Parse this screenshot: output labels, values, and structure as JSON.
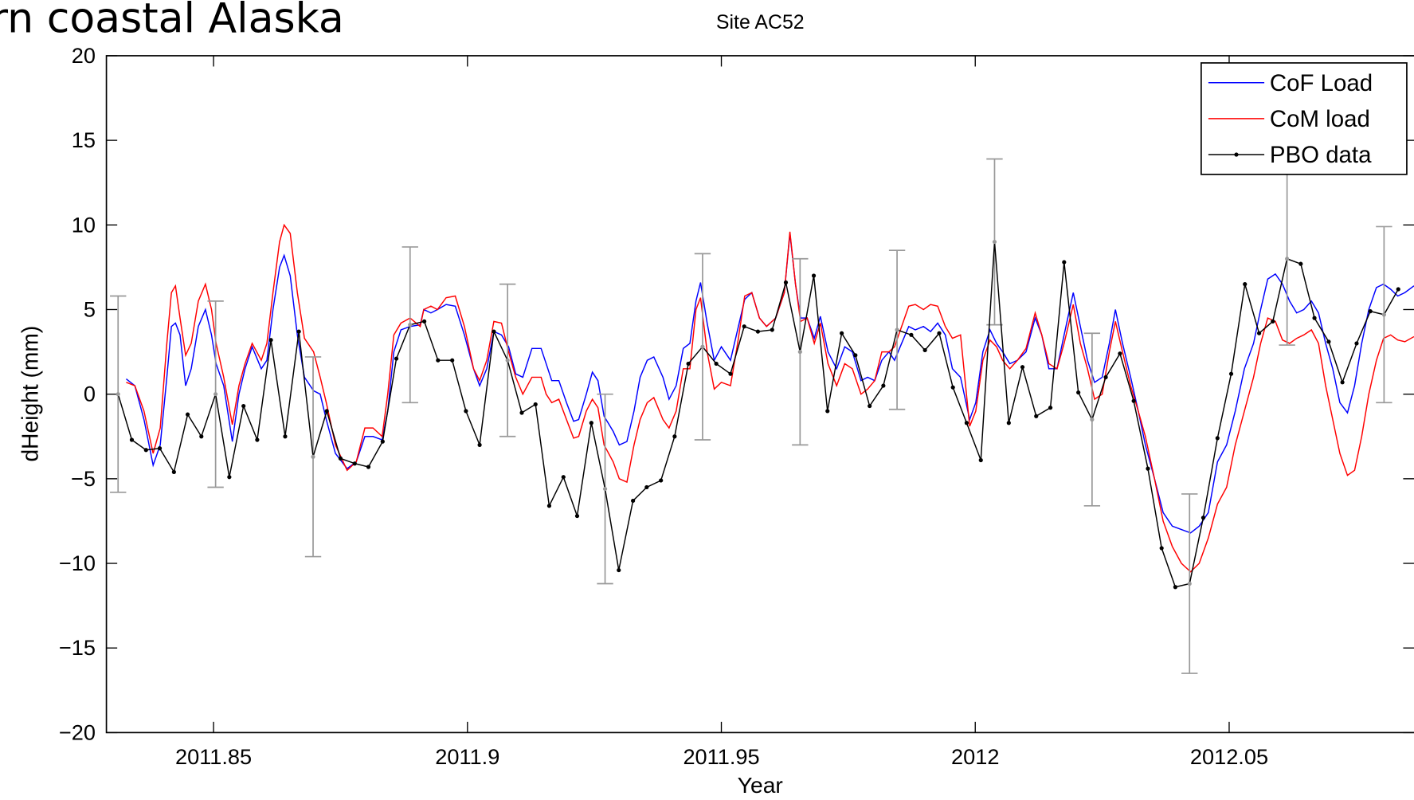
{
  "slide_title": "rn coastal Alaska",
  "chart_data": {
    "type": "line",
    "title": "Site AC52",
    "xlabel": "Year",
    "ylabel": "dHeight (mm)",
    "xlim": [
      2011.8289,
      2012.0864
    ],
    "xticks": [
      2011.85,
      2011.9,
      2011.95,
      2012,
      2012.05
    ],
    "ylim": [
      -20,
      20
    ],
    "yticks": [
      {
        "value": -20,
        "label": "−20"
      },
      {
        "value": -15,
        "label": "−15"
      },
      {
        "value": -10,
        "label": "−10"
      },
      {
        "value": -5,
        "label": "−5"
      },
      0,
      5,
      10,
      15,
      20
    ],
    "legend": "upper right",
    "errorbar_color": "#999999",
    "x": [
      2011.8328,
      2011.8345,
      2011.8363,
      2011.8381,
      2011.8395,
      2011.8408,
      2011.8417,
      2011.8425,
      2011.8434,
      2011.8445,
      2011.8456,
      2011.847,
      2011.8484,
      2011.8496,
      2011.8505,
      2011.852,
      2011.8537,
      2011.855,
      2011.8562,
      2011.8576,
      2011.8594,
      2011.8605,
      2011.8617,
      2011.863,
      2011.8639,
      2011.8651,
      2011.8665,
      2011.8679,
      2011.8697,
      2011.871,
      2011.8722,
      2011.874,
      2011.8763,
      2011.8781,
      2011.8798,
      2011.8814,
      2011.8832,
      2011.8843,
      2011.8855,
      2011.8869,
      2011.8887,
      2011.8907,
      2011.8914,
      2011.8928,
      2011.8941,
      2011.8958,
      2011.8976,
      2011.8994,
      2011.9012,
      2011.9024,
      2011.9038,
      2011.9052,
      2011.9067,
      2011.9081,
      2011.9095,
      2011.9109,
      2011.9127,
      2011.9145,
      2011.9155,
      2011.9166,
      2011.918,
      2011.9195,
      2011.9209,
      2011.9219,
      2011.9234,
      2011.9246,
      2011.9257,
      2011.9269,
      2011.9287,
      2011.9299,
      2011.9314,
      2011.9328,
      2011.934,
      2011.9354,
      2011.9367,
      2011.9385,
      2011.9397,
      2011.9411,
      2011.9425,
      2011.9438,
      2011.945,
      2011.9459,
      2011.9472,
      2011.9486,
      2011.95,
      2011.9518,
      2011.9532,
      2011.9546,
      2011.956,
      2011.9575,
      2011.9589,
      2011.9607,
      2011.9624,
      2011.9635,
      2011.9646,
      2011.9656,
      2011.9669,
      2011.9683,
      2011.9695,
      2011.971,
      2011.9727,
      2011.9743,
      2011.9758,
      2011.9775,
      2011.9788,
      2011.9802,
      2011.9816,
      2011.983,
      2011.9841,
      2011.9855,
      2011.9869,
      2011.9882,
      2011.9898,
      2011.9912,
      2011.9926,
      2011.9941,
      2011.9955,
      2011.9971,
      2011.9989,
      2012.0001,
      2012.0015,
      2012.0029,
      2012.0042,
      2012.0054,
      2012.0068,
      2012.0083,
      2012.01,
      2012.0118,
      2012.0131,
      2012.0145,
      2012.0161,
      2012.0175,
      2012.0193,
      2012.0207,
      2012.0221,
      2012.0235,
      2012.025,
      2012.0264,
      2012.0276,
      2012.029,
      2012.0306,
      2012.0321,
      2012.0335,
      2012.0353,
      2012.037,
      2012.0388,
      2012.0406,
      2012.0424,
      2012.0441,
      2012.0459,
      2012.0477,
      2012.0495,
      2012.0512,
      2012.053,
      2012.0548,
      2012.0562,
      2012.0576,
      2012.0591,
      2012.0605,
      2012.0619,
      2012.0633,
      2012.0647,
      2012.0662,
      2012.0676,
      2012.069,
      2012.0704,
      2012.0718,
      2012.0733,
      2012.0747,
      2012.0761,
      2012.0775,
      2012.079,
      2012.0804,
      2012.0818,
      2012.0832,
      2012.0846,
      2012.0864
    ],
    "series": [
      {
        "name": "CoF Load",
        "color": "#0000ff",
        "values": [
          0.9,
          0.5,
          -1.5,
          -4.2,
          -3.0,
          1.0,
          4.0,
          4.2,
          3.5,
          0.5,
          1.5,
          4.0,
          5.0,
          3.5,
          1.8,
          0.5,
          -2.8,
          0,
          1.5,
          2.8,
          1.5,
          2.0,
          5.0,
          7.5,
          8.2,
          7.0,
          3.5,
          1.0,
          0.2,
          0,
          -1.5,
          -3.5,
          -4.4,
          -4.0,
          -2.5,
          -2.5,
          -2.7,
          -1.0,
          2.5,
          3.8,
          4.0,
          4.1,
          5.0,
          4.8,
          5.0,
          5.3,
          5.2,
          3.5,
          1.5,
          0.5,
          1.5,
          3.7,
          3.5,
          2.8,
          1.2,
          1.0,
          2.7,
          2.7,
          1.8,
          0.8,
          0.8,
          -0.5,
          -1.6,
          -1.5,
          0,
          1.3,
          0.8,
          -1.3,
          -2.2,
          -3.0,
          -2.8,
          -1.0,
          1.0,
          2.0,
          2.2,
          1.0,
          -0.3,
          0.5,
          2.7,
          3.0,
          5.5,
          6.6,
          4.2,
          2.0,
          2.8,
          2.0,
          3.8,
          5.6,
          6.0,
          4.5,
          4.0,
          4.5,
          6.0,
          9.5,
          6.5,
          4.5,
          4.5,
          3.3,
          4.6,
          2.5,
          1.5,
          2.8,
          2.5,
          0.8,
          1.0,
          0.8,
          2.0,
          2.5,
          2.0,
          3.0,
          4.0,
          3.8,
          4.0,
          3.7,
          4.2,
          3.5,
          1.5,
          1.0,
          -1.5,
          -0.5,
          2.5,
          3.8,
          3.0,
          2.5,
          1.8,
          2.0,
          2.5,
          4.5,
          3.5,
          1.5,
          1.5,
          3.5,
          6.0,
          4.0,
          2.0,
          0.7,
          1.0,
          3.0,
          5.0,
          3.0,
          1.0,
          -1.0,
          -3.0,
          -5.0,
          -7.0,
          -7.8,
          -8.0,
          -8.2,
          -7.8,
          -7.0,
          -4.0,
          -3.0,
          -1.0,
          1.5,
          3.0,
          5.0,
          6.8,
          7.1,
          6.5,
          5.5,
          4.8,
          5.0,
          5.5,
          4.8,
          3.0,
          1.5,
          -0.5,
          -1.1,
          0.5,
          3.0,
          5.0,
          6.3,
          6.5,
          6.2,
          5.8,
          6.0,
          6.4
        ]
      },
      {
        "name": "CoM load",
        "color": "#ff0000",
        "values": [
          0.7,
          0.5,
          -1.0,
          -3.5,
          -2.0,
          3.0,
          6.0,
          6.4,
          4.5,
          2.3,
          3.0,
          5.5,
          6.5,
          5.0,
          3.0,
          1.0,
          -1.8,
          0.5,
          1.8,
          3.0,
          2.0,
          3.0,
          6.0,
          9.0,
          10.0,
          9.5,
          6.0,
          3.3,
          2.5,
          1.0,
          -0.5,
          -3.0,
          -4.5,
          -4.0,
          -2.0,
          -2.0,
          -2.5,
          0,
          3.5,
          4.2,
          4.5,
          4.0,
          5.0,
          5.2,
          5.0,
          5.7,
          5.8,
          4.0,
          1.5,
          0.8,
          2.0,
          4.3,
          4.2,
          2.5,
          1.0,
          0,
          1.0,
          1.0,
          0,
          -0.5,
          -0.3,
          -1.5,
          -2.6,
          -2.5,
          -1.0,
          -0.3,
          -0.8,
          -3.0,
          -4.0,
          -5.0,
          -5.2,
          -3.0,
          -1.5,
          -0.5,
          -0.2,
          -1.5,
          -2.0,
          -1.0,
          1.5,
          1.5,
          5.0,
          5.7,
          2.5,
          0.3,
          0.7,
          0.5,
          3.0,
          5.8,
          6.0,
          4.5,
          4.0,
          4.5,
          6.0,
          9.6,
          6.5,
          4.3,
          4.5,
          3.0,
          4.2,
          1.8,
          0.5,
          1.8,
          1.5,
          0,
          0.3,
          0.8,
          2.5,
          2.5,
          2.8,
          4.0,
          5.2,
          5.3,
          5.0,
          5.3,
          5.2,
          4.0,
          3.3,
          3.5,
          -1.9,
          -1.0,
          2.0,
          3.2,
          2.8,
          2.0,
          1.5,
          2.0,
          2.7,
          4.8,
          3.5,
          1.8,
          1.5,
          3.0,
          5.3,
          3.0,
          1.5,
          -0.3,
          0,
          2.5,
          4.3,
          2.5,
          0.5,
          -1.0,
          -2.5,
          -5.0,
          -7.5,
          -9.0,
          -10.0,
          -10.5,
          -10.0,
          -8.5,
          -6.5,
          -5.5,
          -3.0,
          -1.0,
          1.0,
          3.0,
          4.5,
          4.3,
          3.2,
          3.0,
          3.3,
          3.5,
          3.8,
          3.0,
          0.5,
          -1.5,
          -3.5,
          -4.8,
          -4.5,
          -2.5,
          0,
          2.0,
          3.3,
          3.5,
          3.2,
          3.1,
          3.4
        ]
      },
      {
        "name": "PBO data",
        "color": "#000000",
        "marker": "dot",
        "x": [
          2011.8312,
          2011.8339,
          2011.8367,
          2011.8394,
          2011.8422,
          2011.8449,
          2011.8476,
          2011.8504,
          2011.8531,
          2011.8559,
          2011.8586,
          2011.8613,
          2011.8641,
          2011.8668,
          2011.8696,
          2011.8723,
          2011.875,
          2011.8778,
          2011.8805,
          2011.8833,
          2011.886,
          2011.8887,
          2011.8915,
          2011.8942,
          2011.897,
          2011.8997,
          2011.9024,
          2011.9052,
          2011.9079,
          2011.9107,
          2011.9134,
          2011.9161,
          2011.9189,
          2011.9216,
          2011.9244,
          2011.9271,
          2011.9298,
          2011.9326,
          2011.9353,
          2011.9381,
          2011.9408,
          2011.9435,
          2011.9463,
          2011.949,
          2011.9518,
          2011.9545,
          2011.9572,
          2011.96,
          2011.9627,
          2011.9655,
          2011.9682,
          2011.9709,
          2011.9737,
          2011.9764,
          2011.9792,
          2011.9819,
          2011.9846,
          2011.9874,
          2011.9901,
          2011.9929,
          2011.9956,
          2011.9983,
          2012.0011,
          2012.0038,
          2012.0066,
          2012.0093,
          2012.012,
          2012.0148,
          2012.0175,
          2012.0203,
          2012.023,
          2012.0257,
          2012.0285,
          2012.0312,
          2012.034,
          2012.0367,
          2012.0394,
          2012.0422,
          2012.0449,
          2012.0477,
          2012.0504,
          2012.0531,
          2012.0559,
          2012.0586,
          2012.0614,
          2012.0641,
          2012.0668,
          2012.0696,
          2012.0723,
          2012.0751,
          2012.0778,
          2012.0805,
          2012.0833
        ],
        "values": [
          0,
          -2.7,
          -3.3,
          -3.2,
          -4.6,
          -1.2,
          -2.5,
          0,
          -4.9,
          -0.7,
          -2.7,
          3.2,
          -2.5,
          3.7,
          -3.7,
          -1.0,
          -3.8,
          -4.1,
          -4.3,
          -2.8,
          2.1,
          4.1,
          4.3,
          2.0,
          2.0,
          -1.0,
          -3.0,
          3.7,
          2.0,
          -1.1,
          -0.6,
          -6.6,
          -4.9,
          -7.2,
          -1.7,
          -5.6,
          -10.4,
          -6.3,
          -5.5,
          -5.1,
          -2.5,
          1.8,
          2.8,
          1.8,
          1.2,
          4.0,
          3.7,
          3.8,
          6.6,
          2.5,
          7.0,
          -1.0,
          3.6,
          2.3,
          -0.7,
          0.5,
          3.8,
          3.5,
          2.6,
          3.6,
          0.4,
          -1.7,
          -3.9,
          9.0,
          -1.7,
          1.6,
          -1.3,
          -0.8,
          7.8,
          0.1,
          -1.5,
          1.0,
          2.4,
          -0.4,
          -4.4,
          -9.1,
          -11.4,
          -11.2,
          -7.3,
          -2.6,
          1.2,
          6.5,
          3.6,
          4.3,
          8.0,
          7.7,
          4.5,
          3.1,
          0.7,
          3.0,
          4.9,
          4.7,
          6.2
        ],
        "errors": [
          5.8,
          null,
          null,
          null,
          null,
          null,
          null,
          5.5,
          null,
          null,
          null,
          null,
          null,
          null,
          5.9,
          null,
          null,
          null,
          null,
          null,
          null,
          4.6,
          null,
          null,
          null,
          null,
          null,
          null,
          4.5,
          null,
          null,
          null,
          null,
          null,
          null,
          5.6,
          null,
          null,
          null,
          null,
          null,
          null,
          5.5,
          null,
          null,
          null,
          null,
          null,
          null,
          5.5,
          null,
          null,
          null,
          null,
          null,
          null,
          4.7,
          null,
          null,
          null,
          null,
          null,
          null,
          4.9,
          null,
          null,
          null,
          null,
          null,
          null,
          5.1,
          null,
          null,
          null,
          null,
          null,
          null,
          5.3,
          null,
          null,
          null,
          null,
          null,
          null,
          5.1,
          null,
          null,
          null,
          null,
          null,
          null,
          5.2,
          null
        ]
      }
    ]
  }
}
